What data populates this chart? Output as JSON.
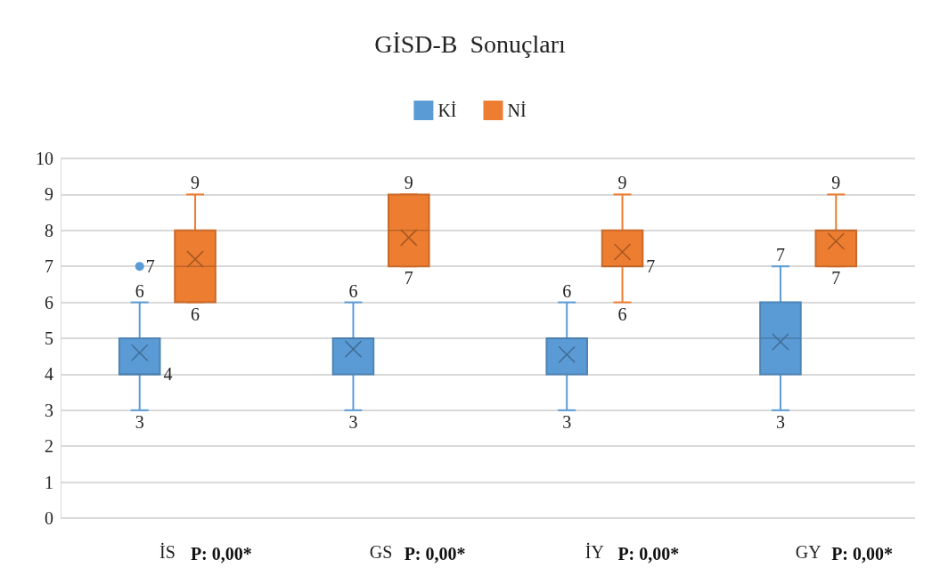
{
  "chart_data": {
    "type": "box",
    "title": "GİSD-B  Sonuçları",
    "categories": [
      "İS",
      "GS",
      "İY",
      "GY"
    ],
    "series": [
      {
        "name": "Kİ",
        "color": "#5b9bd5",
        "boxes": [
          {
            "low": 3,
            "q1": 4,
            "median": 4,
            "q3": 5,
            "high": 6,
            "mean": 4.6,
            "outliers": [
              7
            ]
          },
          {
            "low": 3,
            "q1": 4,
            "median": 5,
            "q3": 5,
            "high": 6,
            "mean": 4.7
          },
          {
            "low": 3,
            "q1": 4,
            "median": 5,
            "q3": 5,
            "high": 6,
            "mean": 4.55
          },
          {
            "low": 3,
            "q1": 4,
            "median": 5,
            "q3": 6,
            "high": 7,
            "mean": 4.9
          }
        ]
      },
      {
        "name": "Nİ",
        "color": "#ed7d31",
        "boxes": [
          {
            "low": 6,
            "q1": 6,
            "median": 7,
            "q3": 8,
            "high": 9,
            "mean": 7.2
          },
          {
            "low": 7,
            "q1": 7,
            "median": 8,
            "q3": 9,
            "high": 9,
            "mean": 7.8
          },
          {
            "low": 6,
            "q1": 7,
            "median": 7,
            "q3": 8,
            "high": 9,
            "mean": 7.4
          },
          {
            "low": 7,
            "q1": 7,
            "median": 8,
            "q3": 8,
            "high": 9,
            "mean": 7.7
          }
        ]
      }
    ],
    "ylim": [
      0,
      10
    ],
    "yticks": [
      0,
      1,
      2,
      3,
      4,
      5,
      6,
      7,
      8,
      9,
      10
    ],
    "grid": "y",
    "legend": "top",
    "annotations": [
      "P: 0,00*",
      "P: 0,00*",
      "P: 0,00*",
      "P: 0,00*",
      "6",
      "3",
      "7",
      "4",
      "6",
      "3",
      "6",
      "3",
      "7",
      "3",
      "9",
      "6",
      "9",
      "7",
      "9",
      "6",
      "7",
      "9",
      "7"
    ]
  }
}
